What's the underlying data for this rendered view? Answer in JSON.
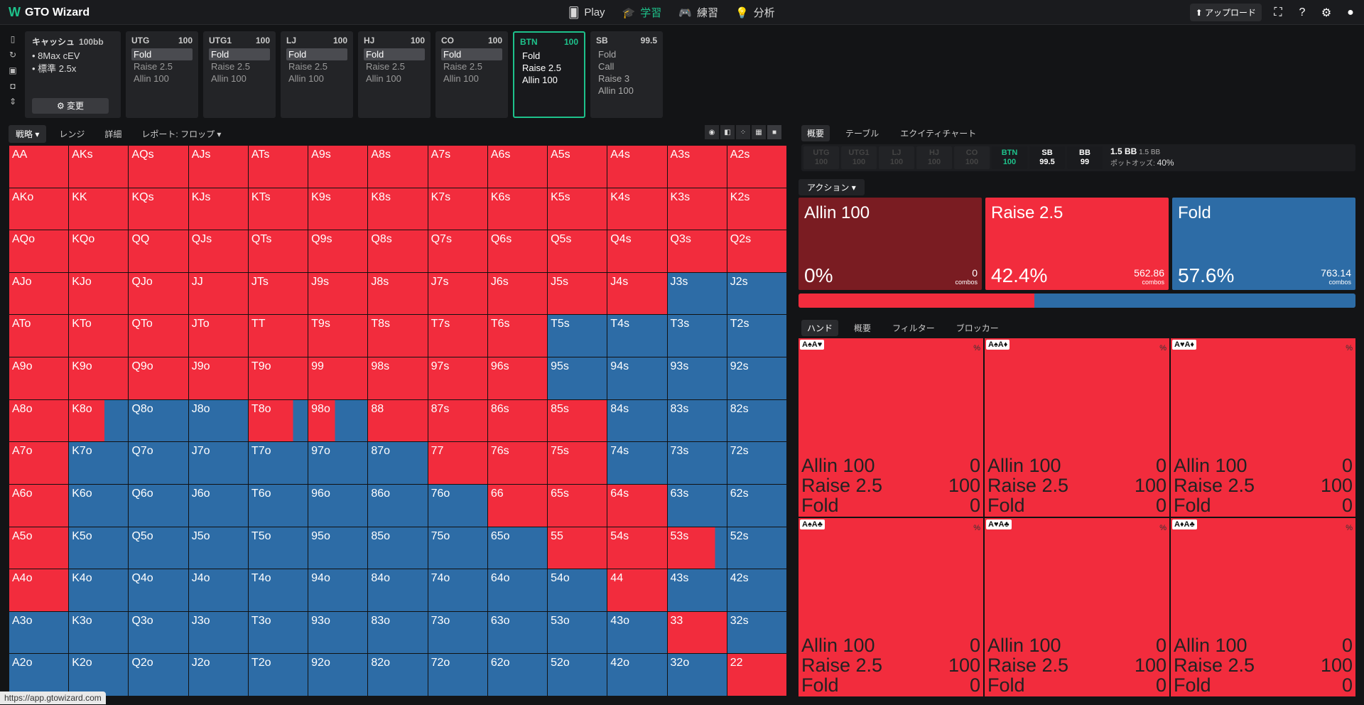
{
  "app": {
    "logo": "GTO Wizard"
  },
  "nav": [
    {
      "label": "Play",
      "icon": "cards-icon",
      "active": false
    },
    {
      "label": "学習",
      "icon": "graduation-icon",
      "active": true
    },
    {
      "label": "練習",
      "icon": "gamepad-icon",
      "active": false
    },
    {
      "label": "分析",
      "icon": "bulb-icon",
      "active": false
    }
  ],
  "top": {
    "upload": "アップロード"
  },
  "setup": {
    "title": "キャッシュ",
    "stack": "100bb",
    "lines": [
      "8Max cEV",
      "標準 2.5x"
    ],
    "change": "変更"
  },
  "positions": [
    {
      "name": "UTG",
      "stack": "100",
      "actions": [
        "Fold",
        "Raise 2.5",
        "Allin 100"
      ],
      "selected": 0
    },
    {
      "name": "UTG1",
      "stack": "100",
      "actions": [
        "Fold",
        "Raise 2.5",
        "Allin 100"
      ],
      "selected": 0
    },
    {
      "name": "LJ",
      "stack": "100",
      "actions": [
        "Fold",
        "Raise 2.5",
        "Allin 100"
      ],
      "selected": 0
    },
    {
      "name": "HJ",
      "stack": "100",
      "actions": [
        "Fold",
        "Raise 2.5",
        "Allin 100"
      ],
      "selected": 0
    },
    {
      "name": "CO",
      "stack": "100",
      "actions": [
        "Fold",
        "Raise 2.5",
        "Allin 100"
      ],
      "selected": 0
    },
    {
      "name": "BTN",
      "stack": "100",
      "actions": [
        "Fold",
        "Raise 2.5",
        "Allin 100"
      ],
      "selected": -1,
      "active": true
    },
    {
      "name": "SB",
      "stack": "99.5",
      "actions": [
        "Fold",
        "Call",
        "Raise 3",
        "Allin 100"
      ],
      "selected": -1
    }
  ],
  "leftTabs": {
    "strategy": "戦略",
    "range": "レンジ",
    "detail": "詳細",
    "report": "レポート: フロップ"
  },
  "colors": {
    "raise": "#f22c3d",
    "fold": "#2d6ca6",
    "allin": "#7a1c22"
  },
  "grid": {
    "labels": [
      [
        "AA",
        "AKs",
        "AQs",
        "AJs",
        "ATs",
        "A9s",
        "A8s",
        "A7s",
        "A6s",
        "A5s",
        "A4s",
        "A3s",
        "A2s"
      ],
      [
        "AKo",
        "KK",
        "KQs",
        "KJs",
        "KTs",
        "K9s",
        "K8s",
        "K7s",
        "K6s",
        "K5s",
        "K4s",
        "K3s",
        "K2s"
      ],
      [
        "AQo",
        "KQo",
        "QQ",
        "QJs",
        "QTs",
        "Q9s",
        "Q8s",
        "Q7s",
        "Q6s",
        "Q5s",
        "Q4s",
        "Q3s",
        "Q2s"
      ],
      [
        "AJo",
        "KJo",
        "QJo",
        "JJ",
        "JTs",
        "J9s",
        "J8s",
        "J7s",
        "J6s",
        "J5s",
        "J4s",
        "J3s",
        "J2s"
      ],
      [
        "ATo",
        "KTo",
        "QTo",
        "JTo",
        "TT",
        "T9s",
        "T8s",
        "T7s",
        "T6s",
        "T5s",
        "T4s",
        "T3s",
        "T2s"
      ],
      [
        "A9o",
        "K9o",
        "Q9o",
        "J9o",
        "T9o",
        "99",
        "98s",
        "97s",
        "96s",
        "95s",
        "94s",
        "93s",
        "92s"
      ],
      [
        "A8o",
        "K8o",
        "Q8o",
        "J8o",
        "T8o",
        "98o",
        "88",
        "87s",
        "86s",
        "85s",
        "84s",
        "83s",
        "82s"
      ],
      [
        "A7o",
        "K7o",
        "Q7o",
        "J7o",
        "T7o",
        "97o",
        "87o",
        "77",
        "76s",
        "75s",
        "74s",
        "73s",
        "72s"
      ],
      [
        "A6o",
        "K6o",
        "Q6o",
        "J6o",
        "T6o",
        "96o",
        "86o",
        "76o",
        "66",
        "65s",
        "64s",
        "63s",
        "62s"
      ],
      [
        "A5o",
        "K5o",
        "Q5o",
        "J5o",
        "T5o",
        "95o",
        "85o",
        "75o",
        "65o",
        "55",
        "54s",
        "53s",
        "52s"
      ],
      [
        "A4o",
        "K4o",
        "Q4o",
        "J4o",
        "T4o",
        "94o",
        "84o",
        "74o",
        "64o",
        "54o",
        "44",
        "43s",
        "42s"
      ],
      [
        "A3o",
        "K3o",
        "Q3o",
        "J3o",
        "T3o",
        "93o",
        "83o",
        "73o",
        "63o",
        "53o",
        "43o",
        "33",
        "32s"
      ],
      [
        "A2o",
        "K2o",
        "Q2o",
        "J2o",
        "T2o",
        "92o",
        "82o",
        "72o",
        "62o",
        "52o",
        "42o",
        "32o",
        "22"
      ]
    ],
    "raise": [
      [
        1,
        1,
        1,
        1,
        1,
        1,
        1,
        1,
        1,
        1,
        1,
        1,
        1
      ],
      [
        1,
        1,
        1,
        1,
        1,
        1,
        1,
        1,
        1,
        1,
        1,
        1,
        1
      ],
      [
        1,
        1,
        1,
        1,
        1,
        1,
        1,
        1,
        1,
        1,
        1,
        1,
        1
      ],
      [
        1,
        1,
        1,
        1,
        1,
        1,
        1,
        1,
        1,
        1,
        1,
        0,
        0
      ],
      [
        1,
        1,
        1,
        1,
        1,
        1,
        1,
        1,
        1,
        0,
        0,
        0,
        0
      ],
      [
        1,
        1,
        1,
        1,
        1,
        1,
        1,
        1,
        1,
        0,
        0,
        0,
        0
      ],
      [
        1,
        0.6,
        0,
        0,
        0.75,
        0.45,
        1,
        1,
        1,
        1,
        0,
        0,
        0
      ],
      [
        1,
        0,
        0,
        0,
        0,
        0,
        0,
        1,
        1,
        1,
        0,
        0,
        0
      ],
      [
        1,
        0,
        0,
        0,
        0,
        0,
        0,
        0,
        1,
        1,
        1,
        0,
        0
      ],
      [
        1,
        0,
        0,
        0,
        0,
        0,
        0,
        0,
        0,
        1,
        1,
        0.8,
        0
      ],
      [
        1,
        0,
        0,
        0,
        0,
        0,
        0,
        0,
        0,
        0,
        1,
        0,
        0
      ],
      [
        0,
        0,
        0,
        0,
        0,
        0,
        0,
        0,
        0,
        0,
        0,
        1,
        0
      ],
      [
        0,
        0,
        0,
        0,
        0,
        0,
        0,
        0,
        0,
        0,
        0,
        0,
        1
      ]
    ]
  },
  "rightTabs": [
    "概要",
    "テーブル",
    "エクイティチャート"
  ],
  "players": [
    {
      "name": "UTG",
      "stack": "100"
    },
    {
      "name": "UTG1",
      "stack": "100"
    },
    {
      "name": "LJ",
      "stack": "100"
    },
    {
      "name": "HJ",
      "stack": "100"
    },
    {
      "name": "CO",
      "stack": "100"
    },
    {
      "name": "BTN",
      "stack": "100"
    },
    {
      "name": "SB",
      "stack": "99.5"
    },
    {
      "name": "BB",
      "stack": "99"
    }
  ],
  "pot": {
    "main": "1.5 BB",
    "side": "1.5 BB",
    "oddsLabel": "ポットオッズ:",
    "odds": "40%"
  },
  "actionDrop": "アクション",
  "actions": [
    {
      "name": "Allin 100",
      "pct": "0%",
      "combos": "0",
      "unit": "combos",
      "color": "#7a1c22",
      "share": 0
    },
    {
      "name": "Raise 2.5",
      "pct": "42.4%",
      "combos": "562.86",
      "unit": "combos",
      "color": "#f22c3d",
      "share": 0.424
    },
    {
      "name": "Fold",
      "pct": "57.6%",
      "combos": "763.14",
      "unit": "combos",
      "color": "#2d6ca6",
      "share": 0.576
    }
  ],
  "handTabs": [
    "ハンド",
    "概要",
    "フィルター",
    "ブロッカー"
  ],
  "hands": [
    {
      "cards": "A♠A♥",
      "rows": [
        [
          "Allin 100",
          "0"
        ],
        [
          "Raise 2.5",
          "100"
        ],
        [
          "Fold",
          "0"
        ]
      ]
    },
    {
      "cards": "A♠A♦",
      "rows": [
        [
          "Allin 100",
          "0"
        ],
        [
          "Raise 2.5",
          "100"
        ],
        [
          "Fold",
          "0"
        ]
      ]
    },
    {
      "cards": "A♥A♦",
      "rows": [
        [
          "Allin 100",
          "0"
        ],
        [
          "Raise 2.5",
          "100"
        ],
        [
          "Fold",
          "0"
        ]
      ]
    },
    {
      "cards": "A♠A♣",
      "rows": [
        [
          "Allin 100",
          "0"
        ],
        [
          "Raise 2.5",
          "100"
        ],
        [
          "Fold",
          "0"
        ]
      ]
    },
    {
      "cards": "A♥A♣",
      "rows": [
        [
          "Allin 100",
          "0"
        ],
        [
          "Raise 2.5",
          "100"
        ],
        [
          "Fold",
          "0"
        ]
      ]
    },
    {
      "cards": "A♦A♣",
      "rows": [
        [
          "Allin 100",
          "0"
        ],
        [
          "Raise 2.5",
          "100"
        ],
        [
          "Fold",
          "0"
        ]
      ]
    }
  ],
  "handPct": "%",
  "statusUrl": "https://app.gtowizard.com"
}
